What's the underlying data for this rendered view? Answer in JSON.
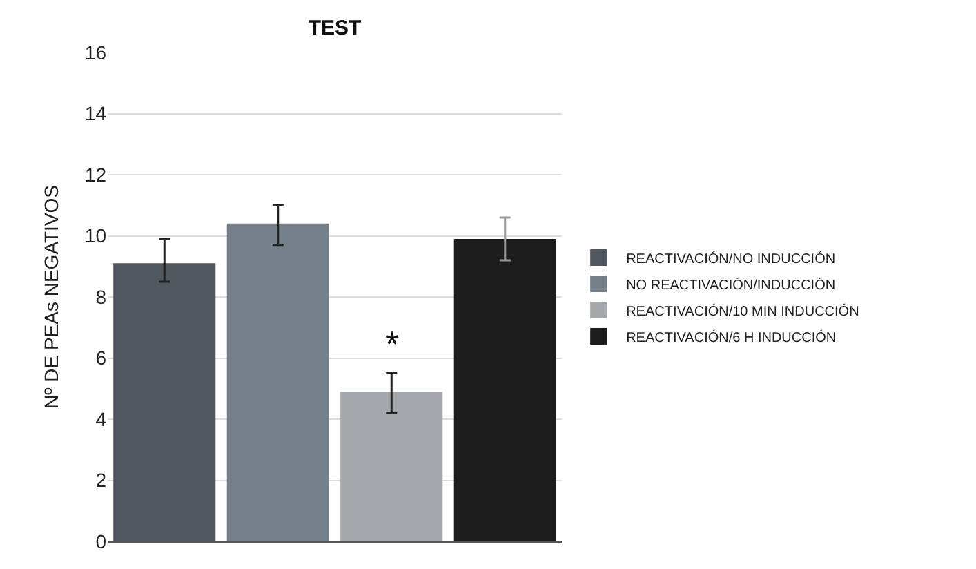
{
  "chart_data": {
    "type": "bar",
    "title": "TEST",
    "ylabel": "Nº DE PEAs NEGATIVOS",
    "categories": [
      null,
      null,
      null,
      null
    ],
    "series": [
      {
        "name": "REACTIVACIÓN/NO INDUCCIÓN",
        "color": "#525860",
        "values": [
          9.1,
          null,
          null,
          null
        ],
        "errors": [
          [
            8.5,
            9.9
          ],
          null,
          null,
          null
        ]
      },
      {
        "name": "NO REACTIVACIÓN/INDUCCIÓN",
        "color": "#76808a",
        "values": [
          null,
          10.4,
          null,
          null
        ],
        "errors": [
          null,
          [
            9.7,
            11.0
          ],
          null,
          null
        ]
      },
      {
        "name": "REACTIVACIÓN/10 MIN INDUCCIÓN",
        "color": "#a4a8ab",
        "values": [
          null,
          null,
          4.9,
          null
        ],
        "errors": [
          null,
          null,
          [
            4.2,
            5.5
          ],
          null
        ]
      },
      {
        "name": "REACTIVACIÓN/6 H INDUCCIÓN",
        "color": "#1c1c1c",
        "values": [
          null,
          null,
          null,
          9.9
        ],
        "errors": [
          null,
          null,
          null,
          [
            9.2,
            10.6
          ]
        ]
      }
    ],
    "annotations": [
      "*"
    ],
    "ylim": [
      0,
      16
    ],
    "yticks": [
      0,
      2,
      4,
      6,
      8,
      10,
      12,
      14,
      16
    ],
    "grid": "y",
    "legend": "right"
  }
}
